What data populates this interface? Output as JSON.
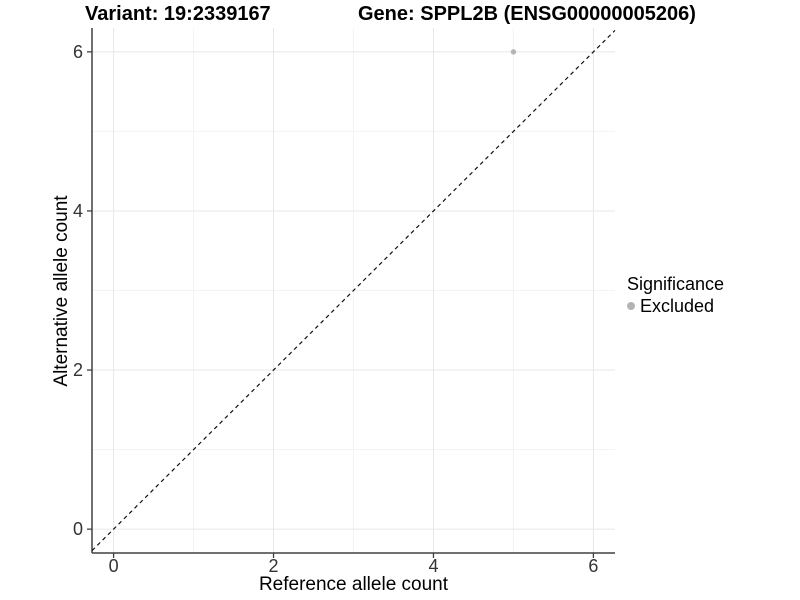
{
  "titles": {
    "left": "Variant: 19:2339167",
    "right": "Gene: SPPL2B (ENSG00000005206)"
  },
  "chart_data": {
    "type": "scatter",
    "xlabel": "Reference allele count",
    "ylabel": "Alternative allele count",
    "xlim": [
      -0.27,
      6.27
    ],
    "ylim": [
      -0.3,
      6.3
    ],
    "x_ticks": [
      0,
      2,
      4,
      6
    ],
    "y_ticks": [
      0,
      2,
      4,
      6
    ],
    "x_minor": [
      1,
      3,
      5
    ],
    "y_minor": [
      1,
      3,
      5
    ],
    "grid": true,
    "points": [
      {
        "x": 5,
        "y": 6,
        "series": "Excluded"
      }
    ],
    "reference_line": {
      "slope": 1,
      "intercept": 0,
      "style": "dashed"
    },
    "legend": {
      "title": "Significance",
      "position": "right",
      "items": [
        {
          "label": "Excluded",
          "color": "#b4b4b4"
        }
      ]
    }
  },
  "colors": {
    "background": "#ffffff",
    "point": "#b4b4b4",
    "grid_major": "#e7e7e7",
    "grid_minor": "#f3f3f3",
    "axis": "#404040",
    "tick_label": "#333333",
    "ref_line": "#111111"
  }
}
